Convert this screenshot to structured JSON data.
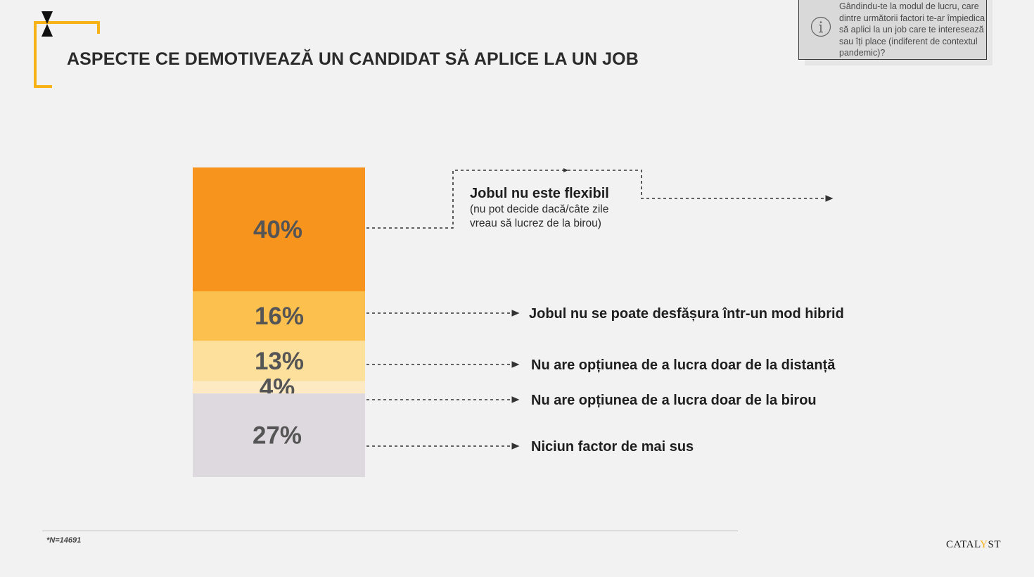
{
  "title": "ASPECTE CE DEMOTIVEAZĂ UN CANDIDAT SĂ APLICE LA UN JOB",
  "info_note": "Gândindu-te la modul de lucru, care dintre următorii factori te-ar împiedica să aplici la un job care te interesează sau îți place (indiferent de contextul pandemic)?",
  "footnote": "*N=14691",
  "brand": {
    "pre": "CATAL",
    "accent": "Y",
    "post": "ST"
  },
  "colors": {
    "accent": "#f7b217"
  },
  "chart_data": {
    "type": "bar",
    "stacked": true,
    "unit": "%",
    "categories": [
      "Jobul nu este flexibil",
      "Jobul nu se poate desfășura într-un mod hibrid",
      "Nu are opțiunea de a lucra doar de la distanță",
      "Nu are opțiunea de a lucra doar de la birou",
      "Niciun factor de mai sus"
    ],
    "category_notes": [
      "(nu pot decide dacă/câte zile vreau să lucrez de la birou)",
      "",
      "",
      "",
      ""
    ],
    "values": [
      40,
      16,
      13,
      4,
      27
    ],
    "value_labels": [
      "40%",
      "16%",
      "13%",
      "4%",
      "27%"
    ],
    "colors": [
      "#f7941e",
      "#fcc04f",
      "#fde09b",
      "#fde9c2",
      "#ded9de"
    ]
  }
}
